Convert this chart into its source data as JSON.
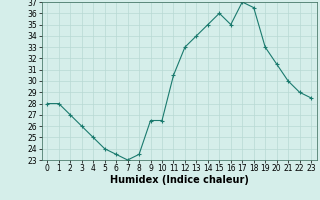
{
  "x": [
    0,
    1,
    2,
    3,
    4,
    5,
    6,
    7,
    8,
    9,
    10,
    11,
    12,
    13,
    14,
    15,
    16,
    17,
    18,
    19,
    20,
    21,
    22,
    23
  ],
  "y": [
    28.0,
    28.0,
    27.0,
    26.0,
    25.0,
    24.0,
    23.5,
    23.0,
    23.5,
    26.5,
    26.5,
    30.5,
    33.0,
    34.0,
    35.0,
    36.0,
    35.0,
    37.0,
    36.5,
    33.0,
    31.5,
    30.0,
    29.0,
    28.5
  ],
  "ylim": [
    23,
    37
  ],
  "yticks": [
    23,
    24,
    25,
    26,
    27,
    28,
    29,
    30,
    31,
    32,
    33,
    34,
    35,
    36,
    37
  ],
  "xticks": [
    0,
    1,
    2,
    3,
    4,
    5,
    6,
    7,
    8,
    9,
    10,
    11,
    12,
    13,
    14,
    15,
    16,
    17,
    18,
    19,
    20,
    21,
    22,
    23
  ],
  "xlabel": "Humidex (Indice chaleur)",
  "line_color": "#1a7a6e",
  "marker_color": "#1a7a6e",
  "bg_color": "#d5eeea",
  "grid_color": "#b8d9d4",
  "xlabel_fontsize": 7,
  "tick_fontsize": 5.5
}
